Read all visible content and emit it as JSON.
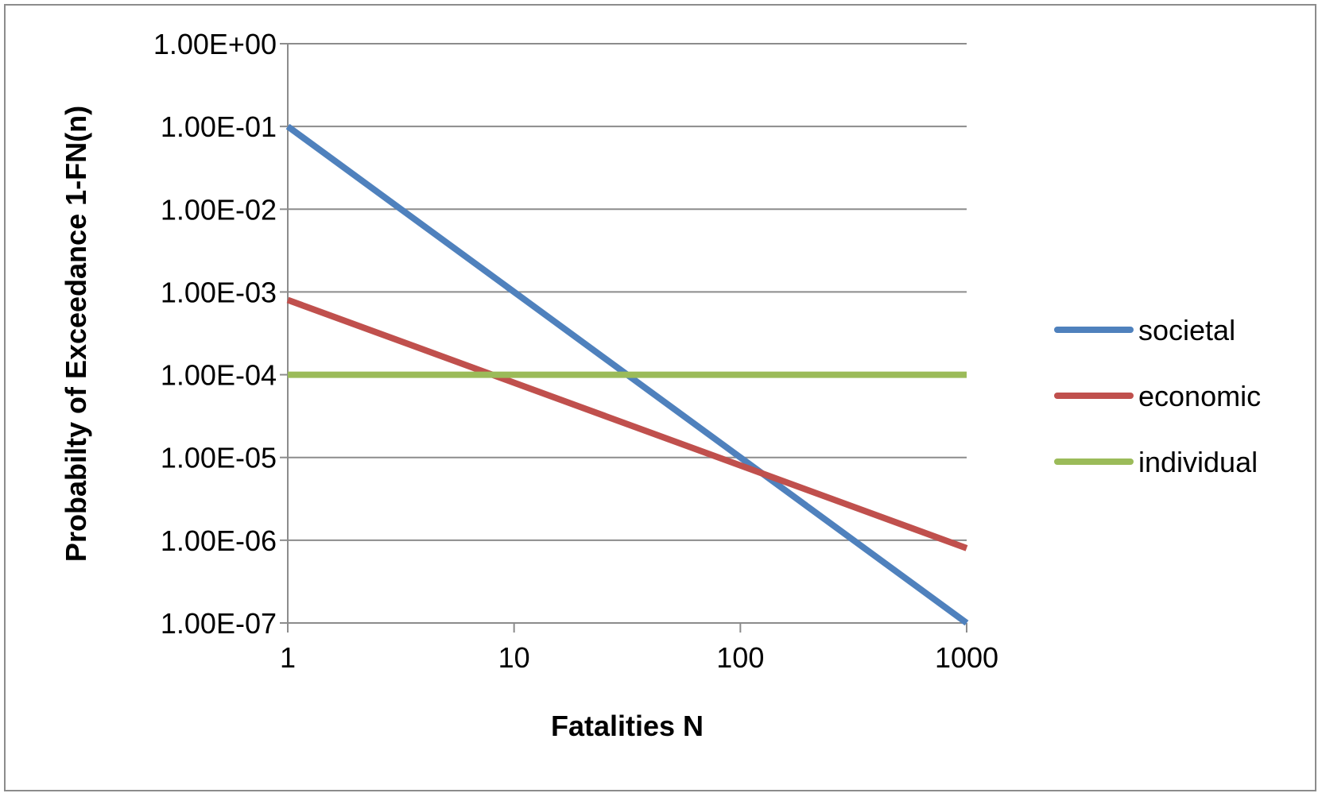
{
  "chart_data": {
    "type": "line",
    "title": "",
    "xlabel": "Fatalities N",
    "ylabel": "Probabilty of Exceedance 1-FN(n)",
    "x_scale": "log",
    "y_scale": "log",
    "xlim": [
      1,
      1000
    ],
    "ylim": [
      1e-07,
      1
    ],
    "x_ticks": [
      {
        "value": 1,
        "label": "1"
      },
      {
        "value": 10,
        "label": "10"
      },
      {
        "value": 100,
        "label": "100"
      },
      {
        "value": 1000,
        "label": "1000"
      }
    ],
    "y_ticks": [
      {
        "value": 1,
        "label": "1.00E+00"
      },
      {
        "value": 0.1,
        "label": "1.00E-01"
      },
      {
        "value": 0.01,
        "label": "1.00E-02"
      },
      {
        "value": 0.001,
        "label": "1.00E-03"
      },
      {
        "value": 0.0001,
        "label": "1.00E-04"
      },
      {
        "value": 1e-05,
        "label": "1.00E-05"
      },
      {
        "value": 1e-06,
        "label": "1.00E-06"
      },
      {
        "value": 1e-07,
        "label": "1.00E-07"
      }
    ],
    "grid": "horizontal",
    "legend_position": "right",
    "series": [
      {
        "name": "societal",
        "color": "#4f81bd",
        "x": [
          1,
          1000
        ],
        "y": [
          0.1,
          1e-07
        ]
      },
      {
        "name": "economic",
        "color": "#c0504d",
        "x": [
          1,
          1000
        ],
        "y": [
          0.0008,
          8e-07
        ]
      },
      {
        "name": "individual",
        "color": "#9bbb59",
        "x": [
          1,
          1000
        ],
        "y": [
          0.0001,
          0.0001
        ]
      }
    ]
  }
}
